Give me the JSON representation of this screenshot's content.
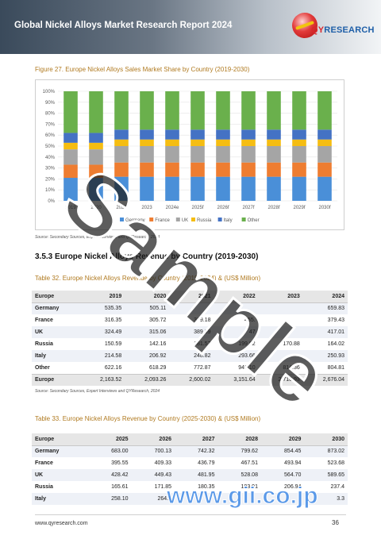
{
  "header": {
    "title": "Global Nickel Alloys Market Research Report 2024",
    "logo_prefix": "QY",
    "logo_suffix": "RESEARCH"
  },
  "figure": {
    "caption": "Figure 27.   Europe Nickel Alloys Sales Market Share by Country (2019-2030)",
    "source": "Source: Secondary Sources, Expert Interviews and QYResearch, 2024"
  },
  "chart_data": {
    "type": "bar",
    "stacked": true,
    "percent": true,
    "categories": [
      "2019",
      "2020",
      "2022",
      "2023",
      "2024e",
      "2025f",
      "2026f",
      "2027f",
      "2028f",
      "2029f",
      "2030f"
    ],
    "ylim": [
      0,
      100
    ],
    "yticks": [
      "0%",
      "10%",
      "20%",
      "30%",
      "40%",
      "50%",
      "60%",
      "70%",
      "80%",
      "90%",
      "100%"
    ],
    "legend_position": "bottom",
    "series": [
      {
        "name": "Germany",
        "color": "#4a8fd8",
        "values": [
          21,
          21,
          22,
          22,
          22,
          22,
          22,
          22,
          22,
          22,
          22
        ]
      },
      {
        "name": "France",
        "color": "#ee7d31",
        "values": [
          12,
          12,
          13,
          13,
          13,
          13,
          13,
          13,
          13,
          13,
          13
        ]
      },
      {
        "name": "UK",
        "color": "#a5a5a5",
        "values": [
          14,
          14,
          15,
          15,
          15,
          15,
          15,
          15,
          15,
          15,
          15
        ]
      },
      {
        "name": "Russia",
        "color": "#f5bd12",
        "values": [
          6,
          6,
          6,
          6,
          6,
          6,
          6,
          6,
          6,
          6,
          6
        ]
      },
      {
        "name": "Italy",
        "color": "#4472c4",
        "values": [
          9,
          9,
          9,
          9,
          9,
          9,
          9,
          9,
          9,
          9,
          9
        ]
      },
      {
        "name": "Other",
        "color": "#6ab04c",
        "values": [
          38,
          38,
          35,
          35,
          35,
          35,
          35,
          35,
          35,
          35,
          35
        ]
      }
    ]
  },
  "section": {
    "title": "3.5.3  Europe Nickel Alloys Revenue by Country (2019-2030)"
  },
  "table1": {
    "caption": "Table 32.   Europe Nickel Alloys Revenue by Country (2019-2024) & (US$ Million)",
    "headers": [
      "Europe",
      "2019",
      "2020",
      "2021",
      "2022",
      "2023",
      "2024"
    ],
    "rows": [
      {
        "name": "Germany",
        "v": [
          "535.35",
          "505.11",
          "",
          "",
          "",
          "659.83"
        ]
      },
      {
        "name": "France",
        "v": [
          "316.35",
          "305.72",
          "379.18",
          "455.",
          "",
          "379.43"
        ]
      },
      {
        "name": "UK",
        "v": [
          "324.49",
          "315.06",
          "389.59",
          "47",
          "",
          "417.01"
        ]
      },
      {
        "name": "Russia",
        "v": [
          "150.59",
          "142.16",
          "181.57",
          "199.82",
          "170.88",
          "164.02"
        ]
      },
      {
        "name": "Italy",
        "v": [
          "214.58",
          "206.92",
          "248.82",
          "293.66",
          "",
          "250.93"
        ]
      },
      {
        "name": "Other",
        "v": [
          "622.16",
          "618.29",
          "772.87",
          "946.10",
          "814.36",
          "804.81"
        ]
      },
      {
        "name": "Europe",
        "v": [
          "2,163.52",
          "2,093.26",
          "2,600.02",
          "3,151.64",
          "2,710.93",
          "2,676.04"
        ]
      }
    ],
    "source": "Source: Secondary Sources, Expert Interviews and QYResearch, 2024"
  },
  "table2": {
    "caption": "Table 33.   Europe Nickel Alloys Revenue by Country (2025-2030) & (US$ Million)",
    "headers": [
      "Europe",
      "2025",
      "2026",
      "2027",
      "2028",
      "2029",
      "2030"
    ],
    "rows": [
      {
        "name": "Germany",
        "v": [
          "683.00",
          "700.13",
          "742.32",
          "799.62",
          "854.45",
          "873.02"
        ]
      },
      {
        "name": "France",
        "v": [
          "395.55",
          "409.33",
          "436.79",
          "467.51",
          "493.94",
          "523.68"
        ]
      },
      {
        "name": "UK",
        "v": [
          "428.42",
          "449.43",
          "481.95",
          "528.08",
          "564.70",
          "589.65"
        ]
      },
      {
        "name": "Russia",
        "v": [
          "165.61",
          "171.85",
          "180.35",
          "193.91",
          "206.94",
          "237.4"
        ]
      },
      {
        "name": "Italy",
        "v": [
          "258.10",
          "264.8",
          "",
          "",
          "",
          "3.3"
        ]
      }
    ]
  },
  "footer": {
    "url": "www.qyresearch.com",
    "page": "36"
  },
  "watermarks": {
    "sample": "Sample",
    "gii": "www.gii.co.jp"
  }
}
